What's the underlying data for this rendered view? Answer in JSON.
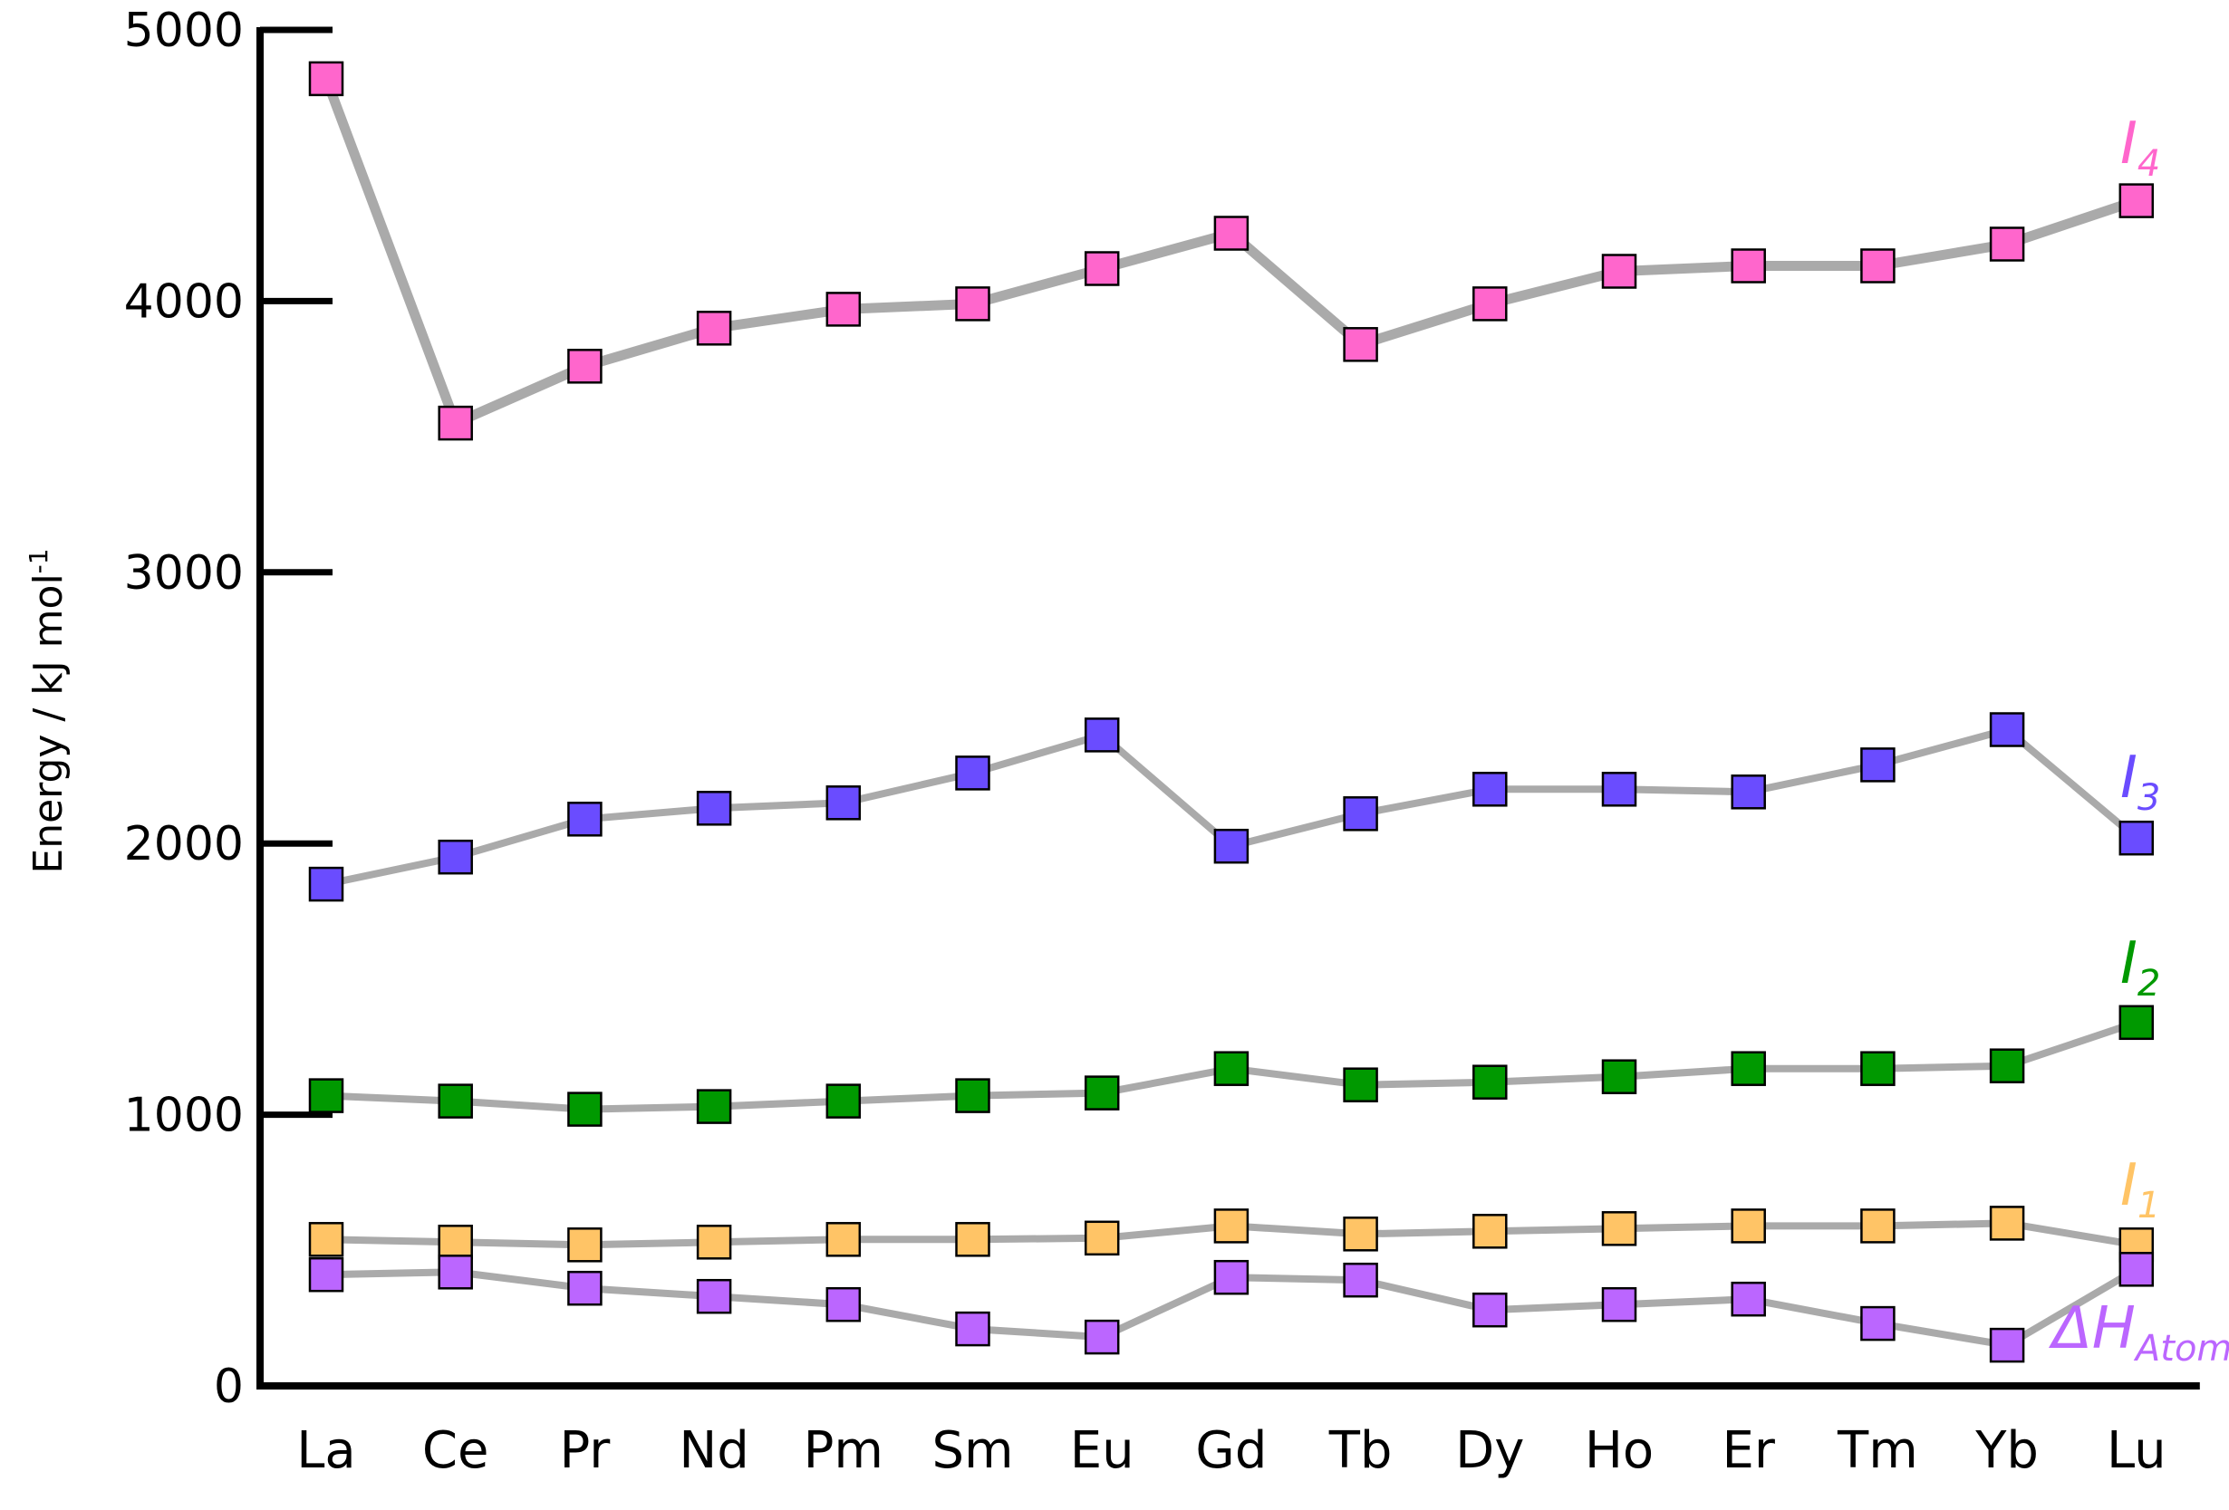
{
  "chart_data": {
    "type": "line",
    "title": "",
    "xlabel": "",
    "ylabel": "Energy / kJ mol",
    "ylabel_superscript": "-1",
    "ylim": [
      0,
      5000
    ],
    "yticks": [
      0,
      1000,
      2000,
      3000,
      4000,
      5000
    ],
    "grid": false,
    "categories": [
      "La",
      "Ce",
      "Pr",
      "Nd",
      "Pm",
      "Sm",
      "Eu",
      "Gd",
      "Tb",
      "Dy",
      "Ho",
      "Er",
      "Tm",
      "Yb",
      "Lu"
    ],
    "series": [
      {
        "name": "I",
        "subscript": "4",
        "color": "#ff66cc",
        "values": [
          4820,
          3550,
          3760,
          3900,
          3970,
          3990,
          4120,
          4250,
          3840,
          3990,
          4110,
          4130,
          4130,
          4210,
          4370
        ]
      },
      {
        "name": "I",
        "subscript": "3",
        "color": "#6a4cff",
        "values": [
          1850,
          1950,
          2090,
          2130,
          2150,
          2260,
          2400,
          1990,
          2110,
          2200,
          2200,
          2190,
          2290,
          2420,
          2020
        ]
      },
      {
        "name": "I",
        "subscript": "2",
        "color": "#009900",
        "values": [
          1070,
          1050,
          1020,
          1030,
          1050,
          1070,
          1080,
          1170,
          1110,
          1120,
          1140,
          1170,
          1170,
          1180,
          1340
        ]
      },
      {
        "name": "I",
        "subscript": "1",
        "color": "#ffc466",
        "values": [
          540,
          530,
          520,
          530,
          540,
          540,
          545,
          590,
          560,
          570,
          580,
          590,
          590,
          600,
          520
        ]
      },
      {
        "name": "ΔH",
        "subscript": "Atom",
        "color": "#bb66ff",
        "values": [
          410,
          420,
          360,
          330,
          300,
          210,
          180,
          400,
          390,
          280,
          300,
          320,
          230,
          150,
          430
        ]
      }
    ],
    "line_color": "#aaaaaa"
  }
}
